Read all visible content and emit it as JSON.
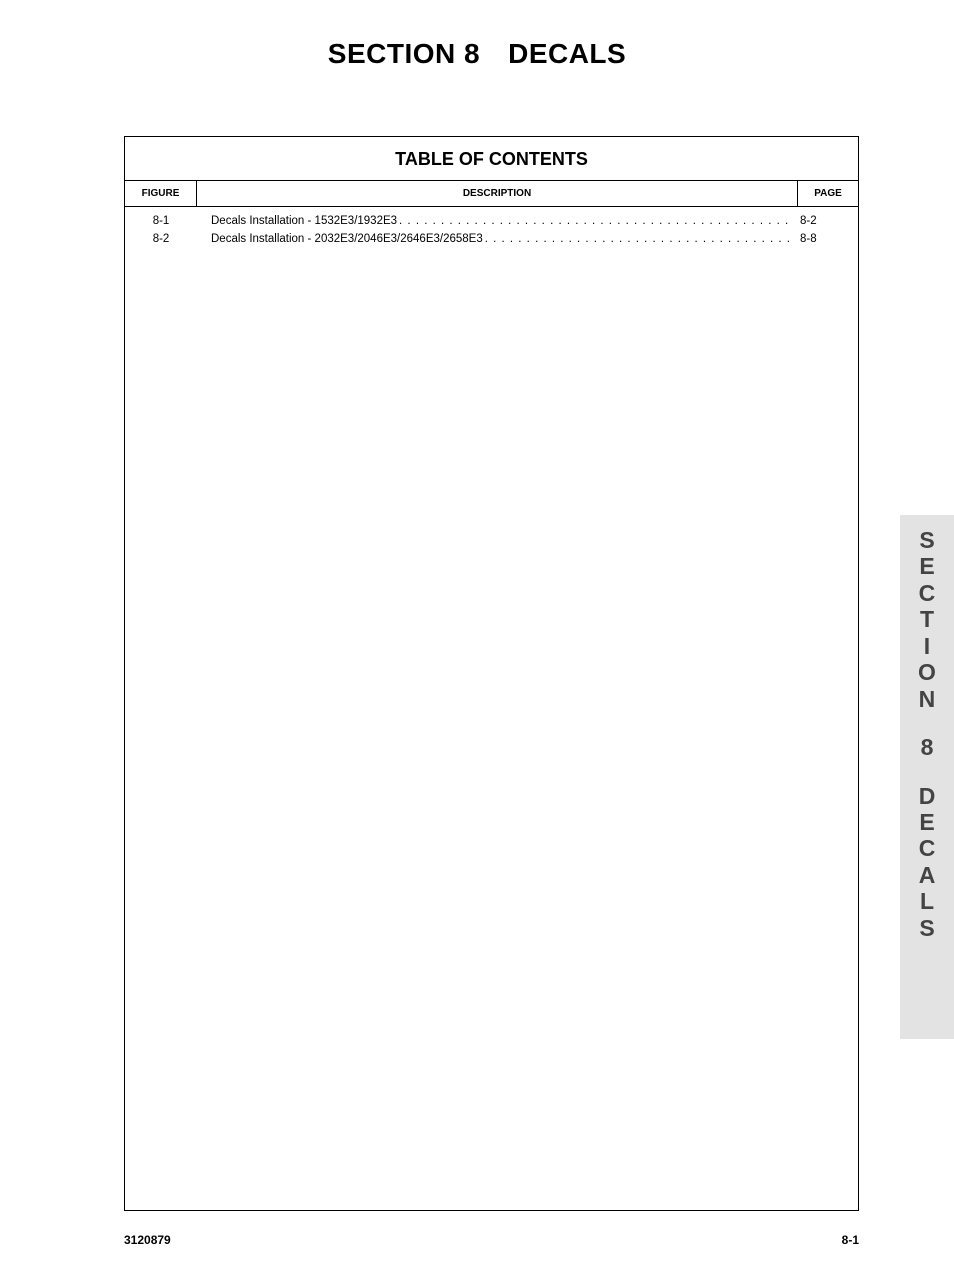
{
  "title": {
    "section_label": "SECTION 8",
    "section_name": "DECALS"
  },
  "toc": {
    "heading": "TABLE OF CONTENTS",
    "columns": {
      "figure": "FIGURE",
      "description": "DESCRIPTION",
      "page": "PAGE"
    },
    "rows": [
      {
        "figure": "8-1",
        "description": "Decals Installation - 1532E3/1932E3",
        "page": "8-2"
      },
      {
        "figure": "8-2",
        "description": "Decals Installation - 2032E3/2046E3/2646E3/2658E3",
        "page": "8-8"
      }
    ]
  },
  "side_tab": {
    "line1": "SECTION",
    "line2": "8",
    "line3": "DECALS"
  },
  "footer": {
    "doc_number": "3120879",
    "page_number": "8-1"
  },
  "colors": {
    "background": "#ffffff",
    "text": "#000000",
    "tab_bg": "#e3e3e3",
    "tab_text": "#444444",
    "border": "#000000"
  },
  "typography": {
    "title_fontsize": 28,
    "toc_title_fontsize": 18,
    "header_fontsize": 10,
    "body_fontsize": 11.5,
    "tab_fontsize": 23,
    "footer_fontsize": 12
  }
}
